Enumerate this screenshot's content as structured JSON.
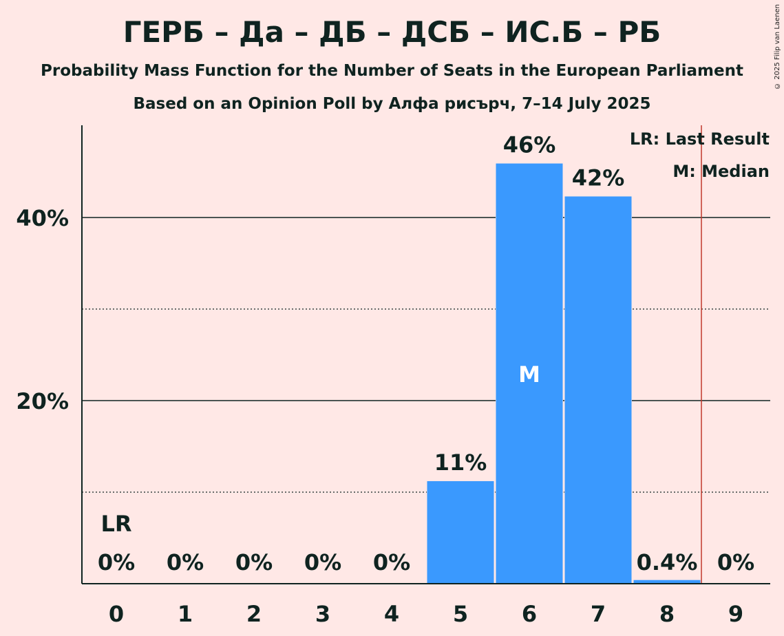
{
  "title": "ГЕРБ – Да – ДБ – ДСБ – ИС.Б – РБ",
  "subtitle": "Probability Mass Function for the Number of Seats in the European Parliament",
  "subtitle2": "Based on an Opinion Poll by Алфа рисърч, 7–14 July 2025",
  "copyright": "© 2025 Filip van Laenen",
  "legend": {
    "last_result": "LR: Last Result",
    "median": "M: Median"
  },
  "colors": {
    "bar": "#3a99fe",
    "last_result_line": "#c0392b",
    "background": "#ffe8e6",
    "text": "#0f2320"
  },
  "chart_data": {
    "type": "bar",
    "categories": [
      "0",
      "1",
      "2",
      "3",
      "4",
      "5",
      "6",
      "7",
      "8",
      "9"
    ],
    "values": [
      0,
      0,
      0,
      0,
      0,
      11.2,
      45.9,
      42.3,
      0.4,
      0
    ],
    "value_labels": [
      "0%",
      "0%",
      "0%",
      "0%",
      "0%",
      "11%",
      "46%",
      "42%",
      "0.4%",
      "0%"
    ],
    "y_tick_labels": [
      "20%",
      "40%"
    ],
    "y_ticks": [
      20,
      40
    ],
    "minor_gridlines": [
      10,
      30
    ],
    "ylim": [
      0,
      50
    ],
    "last_result": {
      "seats": 0,
      "label": "LR"
    },
    "median": {
      "seats": 6,
      "label": "M"
    },
    "last_result_line_x": 8.5,
    "grid": true,
    "legend_position": "top-right"
  }
}
